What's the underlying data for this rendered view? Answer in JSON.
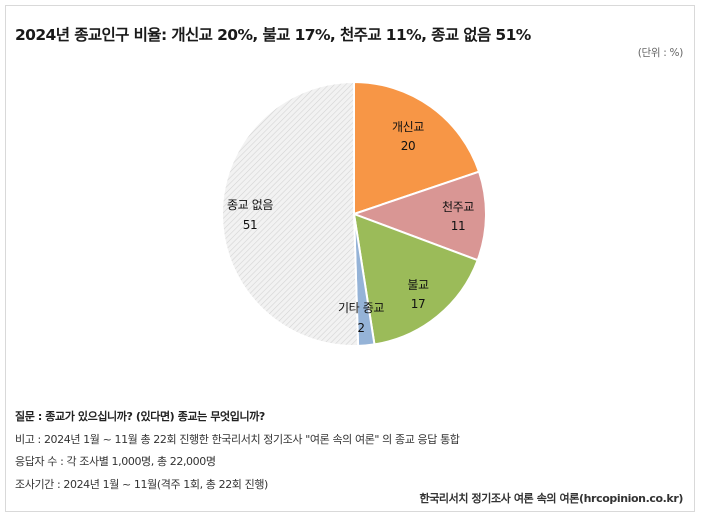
{
  "header": {
    "title": "2024년 종교인구 비율: 개신교 20%, 불교 17%, 천주교 11%, 종교 없음 51%",
    "unit": "(단위 : %)"
  },
  "chart_data": {
    "type": "pie",
    "title": "2024년 종교인구 비율: 개신교 20%, 불교 17%, 천주교 11%, 종교 없음 51%",
    "unit": "%",
    "start_angle": "12 o'clock",
    "direction": "clockwise",
    "categories": [
      "개신교",
      "천주교",
      "불교",
      "기타 종교",
      "종교 없음"
    ],
    "values": [
      20,
      11,
      17,
      2,
      51
    ],
    "colors": [
      "#F79646",
      "#D99694",
      "#9BBB59",
      "#95B3D7",
      "#EDEDED"
    ],
    "slices": [
      {
        "label": "개신교",
        "value": 20,
        "color": "#F79646"
      },
      {
        "label": "천주교",
        "value": 11,
        "color": "#D99694"
      },
      {
        "label": "불교",
        "value": 17,
        "color": "#9BBB59"
      },
      {
        "label": "기타 종교",
        "value": 2,
        "color": "#95B3D7"
      },
      {
        "label": "종교 없음",
        "value": 51,
        "color": "#EDEDED",
        "pattern": "diagonal-hatch"
      }
    ],
    "legend": "none (data labels on slices)"
  },
  "labels": {
    "protestant": {
      "name": "개신교",
      "value": "20"
    },
    "catholic": {
      "name": "천주교",
      "value": "11"
    },
    "buddhism": {
      "name": "불교",
      "value": "17"
    },
    "other": {
      "name": "기타 종교",
      "value": "2"
    },
    "none": {
      "name": "종교 없음",
      "value": "51"
    }
  },
  "notes": {
    "question": "질문 : 종교가 있으십니까? (있다면) 종교는 무엇입니까?",
    "remark": "비고 : 2024년 1월 ~ 11월 총 22회 진행한 한국리서치 정기조사 \"여론 속의 여론\" 의 종교 응답 통합",
    "respondents": "응답자 수 : 각 조사별 1,000명, 총 22,000명",
    "period": "조사기간 : 2024년 1월 ~ 11월(격주 1회, 총 22회 진행)"
  },
  "source": "한국리서치 정기조사 여론 속의 여론(hrcopinion.co.kr)"
}
